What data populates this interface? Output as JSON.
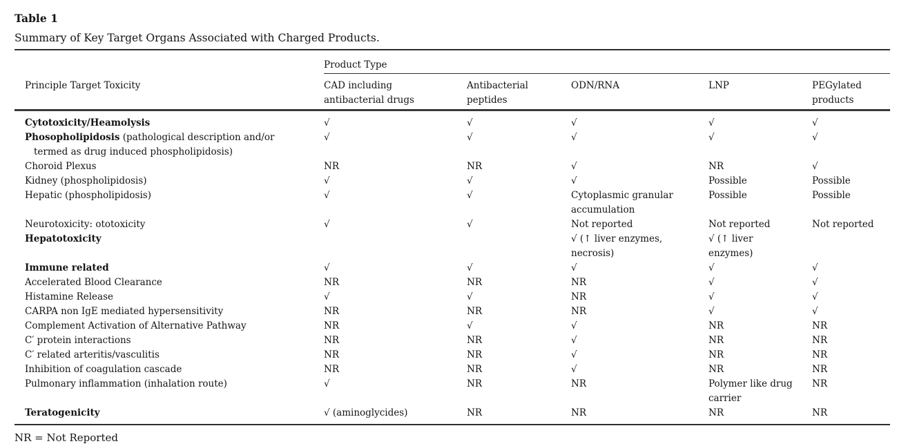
{
  "table": {
    "title": "Table 1",
    "subtitle": "Summary of Key Target Organs Associated with Charged Products.",
    "header": {
      "row_label": "Principle Target Toxicity",
      "group_label": "Product Type",
      "columns": [
        "CAD including\nantibacterial drugs",
        "Antibacterial\npeptides",
        "ODN/RNA",
        "LNP",
        "PEGylated\nproducts"
      ]
    },
    "rows": [
      {
        "label_bold": "Cytotoxicity/Heamolysis",
        "label_rest": "",
        "cells": [
          "√",
          "√",
          "√",
          "√",
          "√"
        ]
      },
      {
        "label_bold": "Phosopholipidosis",
        "label_rest": " (pathological description and/or\ntermed as drug induced phospholipidosis)",
        "cells": [
          "√",
          "√",
          "√",
          "√",
          "√"
        ]
      },
      {
        "label_bold": "",
        "label_rest": "Choroid Plexus",
        "cells": [
          "NR",
          "NR",
          "√",
          "NR",
          "√"
        ]
      },
      {
        "label_bold": "",
        "label_rest": "Kidney (phospholipidosis)",
        "cells": [
          "√",
          "√",
          "√",
          "Possible",
          "Possible"
        ]
      },
      {
        "label_bold": "",
        "label_rest": "Hepatic (phospholipidosis)",
        "cells": [
          "√",
          "√",
          "Cytoplasmic granular\naccumulation",
          "Possible",
          "Possible"
        ]
      },
      {
        "label_bold": "",
        "label_rest": "Neurotoxicity: ototoxicity",
        "cells": [
          "√",
          "√",
          "Not reported",
          "Not reported",
          "Not reported"
        ]
      },
      {
        "label_bold": "Hepatotoxicity",
        "label_rest": "",
        "cells": [
          "",
          "",
          "√ (↑ liver enzymes,\nnecrosis)",
          "√ (↑ liver\nenzymes)",
          ""
        ]
      },
      {
        "label_bold": "Immune related",
        "label_rest": "",
        "cells": [
          "√",
          "√",
          "√",
          "√",
          "√"
        ]
      },
      {
        "label_bold": "",
        "label_rest": "Accelerated Blood Clearance",
        "cells": [
          "NR",
          "NR",
          "NR",
          "√",
          "√"
        ]
      },
      {
        "label_bold": "",
        "label_rest": "Histamine Release",
        "cells": [
          "√",
          "√",
          "NR",
          "√",
          "√"
        ]
      },
      {
        "label_bold": "",
        "label_rest": "CARPA non IgE mediated hypersensitivity",
        "cells": [
          "NR",
          "NR",
          "NR",
          "√",
          "√"
        ]
      },
      {
        "label_bold": "",
        "label_rest": "Complement Activation of Alternative Pathway",
        "cells": [
          "NR",
          "√",
          "√",
          "NR",
          "NR"
        ]
      },
      {
        "label_bold": "",
        "label_rest": "C′ protein interactions",
        "cells": [
          "NR",
          "NR",
          "√",
          "NR",
          "NR"
        ]
      },
      {
        "label_bold": "",
        "label_rest": "C′ related arteritis/vasculitis",
        "cells": [
          "NR",
          "NR",
          "√",
          "NR",
          "NR"
        ]
      },
      {
        "label_bold": "",
        "label_rest": "Inhibition of coagulation cascade",
        "cells": [
          "NR",
          "NR",
          "√",
          "NR",
          "NR"
        ]
      },
      {
        "label_bold": "",
        "label_rest": "Pulmonary inflammation (inhalation route)",
        "cells": [
          "√",
          "NR",
          "NR",
          "Polymer like drug\ncarrier",
          "NR"
        ]
      },
      {
        "label_bold": "Teratogenicity",
        "label_rest": "",
        "cells": [
          "√ (aminoglycides)",
          "NR",
          "NR",
          "NR",
          "NR"
        ]
      }
    ],
    "footnote": "NR = Not Reported"
  }
}
